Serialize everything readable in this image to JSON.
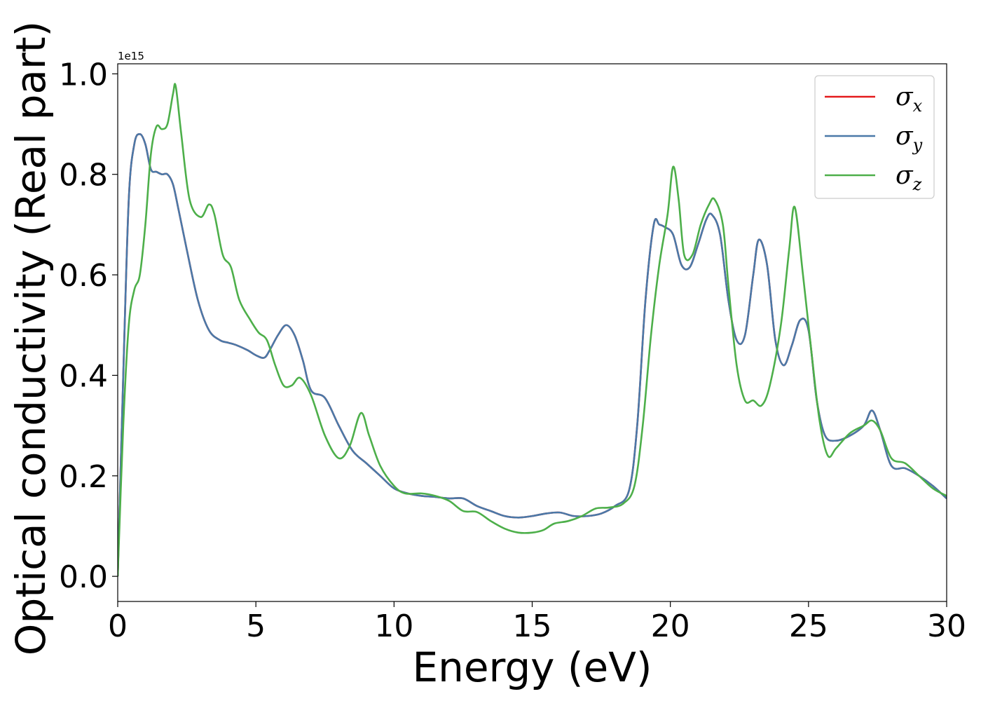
{
  "chart_data": {
    "type": "line",
    "xlabel": "Energy (eV)",
    "ylabel": "Optical conductivity (Real part)",
    "y_offset_text": "1e15",
    "xlim": [
      0,
      30
    ],
    "ylim": [
      -0.05,
      1.02
    ],
    "x_ticks": [
      0,
      5,
      10,
      15,
      20,
      25,
      30
    ],
    "x_tick_labels": [
      "0",
      "5",
      "10",
      "15",
      "20",
      "25",
      "30"
    ],
    "y_ticks": [
      0.0,
      0.2,
      0.4,
      0.6,
      0.8,
      1.0
    ],
    "y_tick_labels": [
      "0.0",
      "0.2",
      "0.4",
      "0.6",
      "0.8",
      "1.0"
    ],
    "grid": false,
    "legend_position": "top-right",
    "series": [
      {
        "name": "σ",
        "sub": "x",
        "color": "#e41a1c",
        "x": [
          0,
          0.2,
          0.4,
          0.6,
          0.8,
          1.0,
          1.2,
          1.4,
          1.6,
          1.8,
          2.0,
          2.2,
          2.5,
          2.9,
          3.3,
          3.7,
          4.0,
          4.3,
          4.7,
          5.0,
          5.3,
          5.5,
          5.8,
          6.1,
          6.4,
          6.7,
          7.0,
          7.5,
          8.0,
          8.5,
          9.0,
          9.5,
          10.0,
          10.5,
          11.0,
          11.5,
          12.0,
          12.5,
          13.0,
          13.5,
          14.0,
          14.5,
          15.0,
          15.5,
          16.0,
          16.5,
          17.0,
          17.5,
          18.0,
          18.5,
          18.8,
          19.1,
          19.4,
          19.6,
          19.8,
          20.1,
          20.4,
          20.7,
          21.0,
          21.3,
          21.5,
          21.8,
          22.1,
          22.4,
          22.7,
          23.0,
          23.2,
          23.5,
          23.8,
          24.1,
          24.4,
          24.7,
          25.0,
          25.3,
          25.6,
          26.0,
          26.5,
          27.0,
          27.3,
          27.6,
          28.0,
          28.5,
          29.0,
          29.5,
          30.0
        ],
        "y": [
          0.0,
          0.4,
          0.75,
          0.86,
          0.88,
          0.86,
          0.81,
          0.805,
          0.8,
          0.8,
          0.78,
          0.73,
          0.65,
          0.55,
          0.49,
          0.47,
          0.465,
          0.46,
          0.45,
          0.44,
          0.435,
          0.45,
          0.48,
          0.5,
          0.48,
          0.43,
          0.37,
          0.355,
          0.3,
          0.25,
          0.225,
          0.2,
          0.175,
          0.165,
          0.16,
          0.158,
          0.155,
          0.155,
          0.14,
          0.13,
          0.12,
          0.117,
          0.12,
          0.125,
          0.127,
          0.12,
          0.12,
          0.125,
          0.14,
          0.17,
          0.3,
          0.55,
          0.7,
          0.7,
          0.695,
          0.68,
          0.62,
          0.615,
          0.66,
          0.71,
          0.72,
          0.68,
          0.55,
          0.47,
          0.48,
          0.6,
          0.67,
          0.62,
          0.47,
          0.42,
          0.46,
          0.51,
          0.49,
          0.35,
          0.28,
          0.27,
          0.28,
          0.3,
          0.33,
          0.29,
          0.22,
          0.215,
          0.2,
          0.18,
          0.155
        ]
      },
      {
        "name": "σ",
        "sub": "y",
        "color": "#4a79a8",
        "x": [
          0,
          0.2,
          0.4,
          0.6,
          0.8,
          1.0,
          1.2,
          1.4,
          1.6,
          1.8,
          2.0,
          2.2,
          2.5,
          2.9,
          3.3,
          3.7,
          4.0,
          4.3,
          4.7,
          5.0,
          5.3,
          5.5,
          5.8,
          6.1,
          6.4,
          6.7,
          7.0,
          7.5,
          8.0,
          8.5,
          9.0,
          9.5,
          10.0,
          10.5,
          11.0,
          11.5,
          12.0,
          12.5,
          13.0,
          13.5,
          14.0,
          14.5,
          15.0,
          15.5,
          16.0,
          16.5,
          17.0,
          17.5,
          18.0,
          18.5,
          18.8,
          19.1,
          19.4,
          19.6,
          19.8,
          20.1,
          20.4,
          20.7,
          21.0,
          21.3,
          21.5,
          21.8,
          22.1,
          22.4,
          22.7,
          23.0,
          23.2,
          23.5,
          23.8,
          24.1,
          24.4,
          24.7,
          25.0,
          25.3,
          25.6,
          26.0,
          26.5,
          27.0,
          27.3,
          27.6,
          28.0,
          28.5,
          29.0,
          29.5,
          30.0
        ],
        "y": [
          0.0,
          0.4,
          0.75,
          0.86,
          0.88,
          0.86,
          0.81,
          0.805,
          0.8,
          0.8,
          0.78,
          0.73,
          0.65,
          0.55,
          0.49,
          0.47,
          0.465,
          0.46,
          0.45,
          0.44,
          0.435,
          0.45,
          0.48,
          0.5,
          0.48,
          0.43,
          0.37,
          0.355,
          0.3,
          0.25,
          0.225,
          0.2,
          0.175,
          0.165,
          0.16,
          0.158,
          0.155,
          0.155,
          0.14,
          0.13,
          0.12,
          0.117,
          0.12,
          0.125,
          0.127,
          0.12,
          0.12,
          0.125,
          0.14,
          0.17,
          0.3,
          0.55,
          0.7,
          0.7,
          0.695,
          0.68,
          0.62,
          0.615,
          0.66,
          0.71,
          0.72,
          0.68,
          0.55,
          0.47,
          0.48,
          0.6,
          0.67,
          0.62,
          0.47,
          0.42,
          0.46,
          0.51,
          0.49,
          0.35,
          0.28,
          0.27,
          0.28,
          0.3,
          0.33,
          0.29,
          0.22,
          0.215,
          0.2,
          0.18,
          0.155
        ]
      },
      {
        "name": "σ",
        "sub": "z",
        "color": "#4daf4a",
        "x": [
          0,
          0.2,
          0.4,
          0.6,
          0.8,
          1.0,
          1.2,
          1.4,
          1.6,
          1.8,
          2.0,
          2.1,
          2.3,
          2.6,
          3.0,
          3.3,
          3.5,
          3.8,
          4.1,
          4.4,
          4.8,
          5.1,
          5.4,
          5.7,
          6.0,
          6.3,
          6.6,
          7.0,
          7.5,
          8.0,
          8.4,
          8.8,
          9.1,
          9.5,
          10.0,
          10.4,
          11.0,
          11.5,
          12.0,
          12.5,
          13.0,
          13.5,
          14.0,
          14.5,
          15.0,
          15.4,
          15.8,
          16.3,
          16.8,
          17.3,
          17.8,
          18.3,
          18.7,
          19.0,
          19.3,
          19.6,
          19.9,
          20.1,
          20.3,
          20.5,
          20.8,
          21.1,
          21.4,
          21.6,
          21.9,
          22.1,
          22.4,
          22.7,
          23.0,
          23.3,
          23.6,
          24.0,
          24.3,
          24.5,
          24.8,
          25.1,
          25.4,
          25.7,
          26.0,
          26.5,
          27.0,
          27.3,
          27.6,
          28.0,
          28.5,
          29.0,
          29.5,
          30.0
        ],
        "y": [
          0.0,
          0.3,
          0.5,
          0.57,
          0.6,
          0.7,
          0.84,
          0.895,
          0.89,
          0.9,
          0.96,
          0.975,
          0.88,
          0.75,
          0.715,
          0.74,
          0.72,
          0.64,
          0.615,
          0.55,
          0.51,
          0.485,
          0.47,
          0.42,
          0.38,
          0.38,
          0.395,
          0.36,
          0.28,
          0.235,
          0.26,
          0.325,
          0.28,
          0.22,
          0.18,
          0.165,
          0.165,
          0.16,
          0.15,
          0.13,
          0.128,
          0.11,
          0.095,
          0.087,
          0.087,
          0.092,
          0.105,
          0.11,
          0.12,
          0.135,
          0.137,
          0.145,
          0.18,
          0.3,
          0.48,
          0.62,
          0.72,
          0.815,
          0.75,
          0.64,
          0.64,
          0.7,
          0.74,
          0.75,
          0.7,
          0.58,
          0.42,
          0.35,
          0.35,
          0.34,
          0.38,
          0.5,
          0.65,
          0.735,
          0.6,
          0.45,
          0.31,
          0.24,
          0.255,
          0.285,
          0.3,
          0.31,
          0.29,
          0.235,
          0.225,
          0.2,
          0.175,
          0.16
        ]
      }
    ]
  }
}
